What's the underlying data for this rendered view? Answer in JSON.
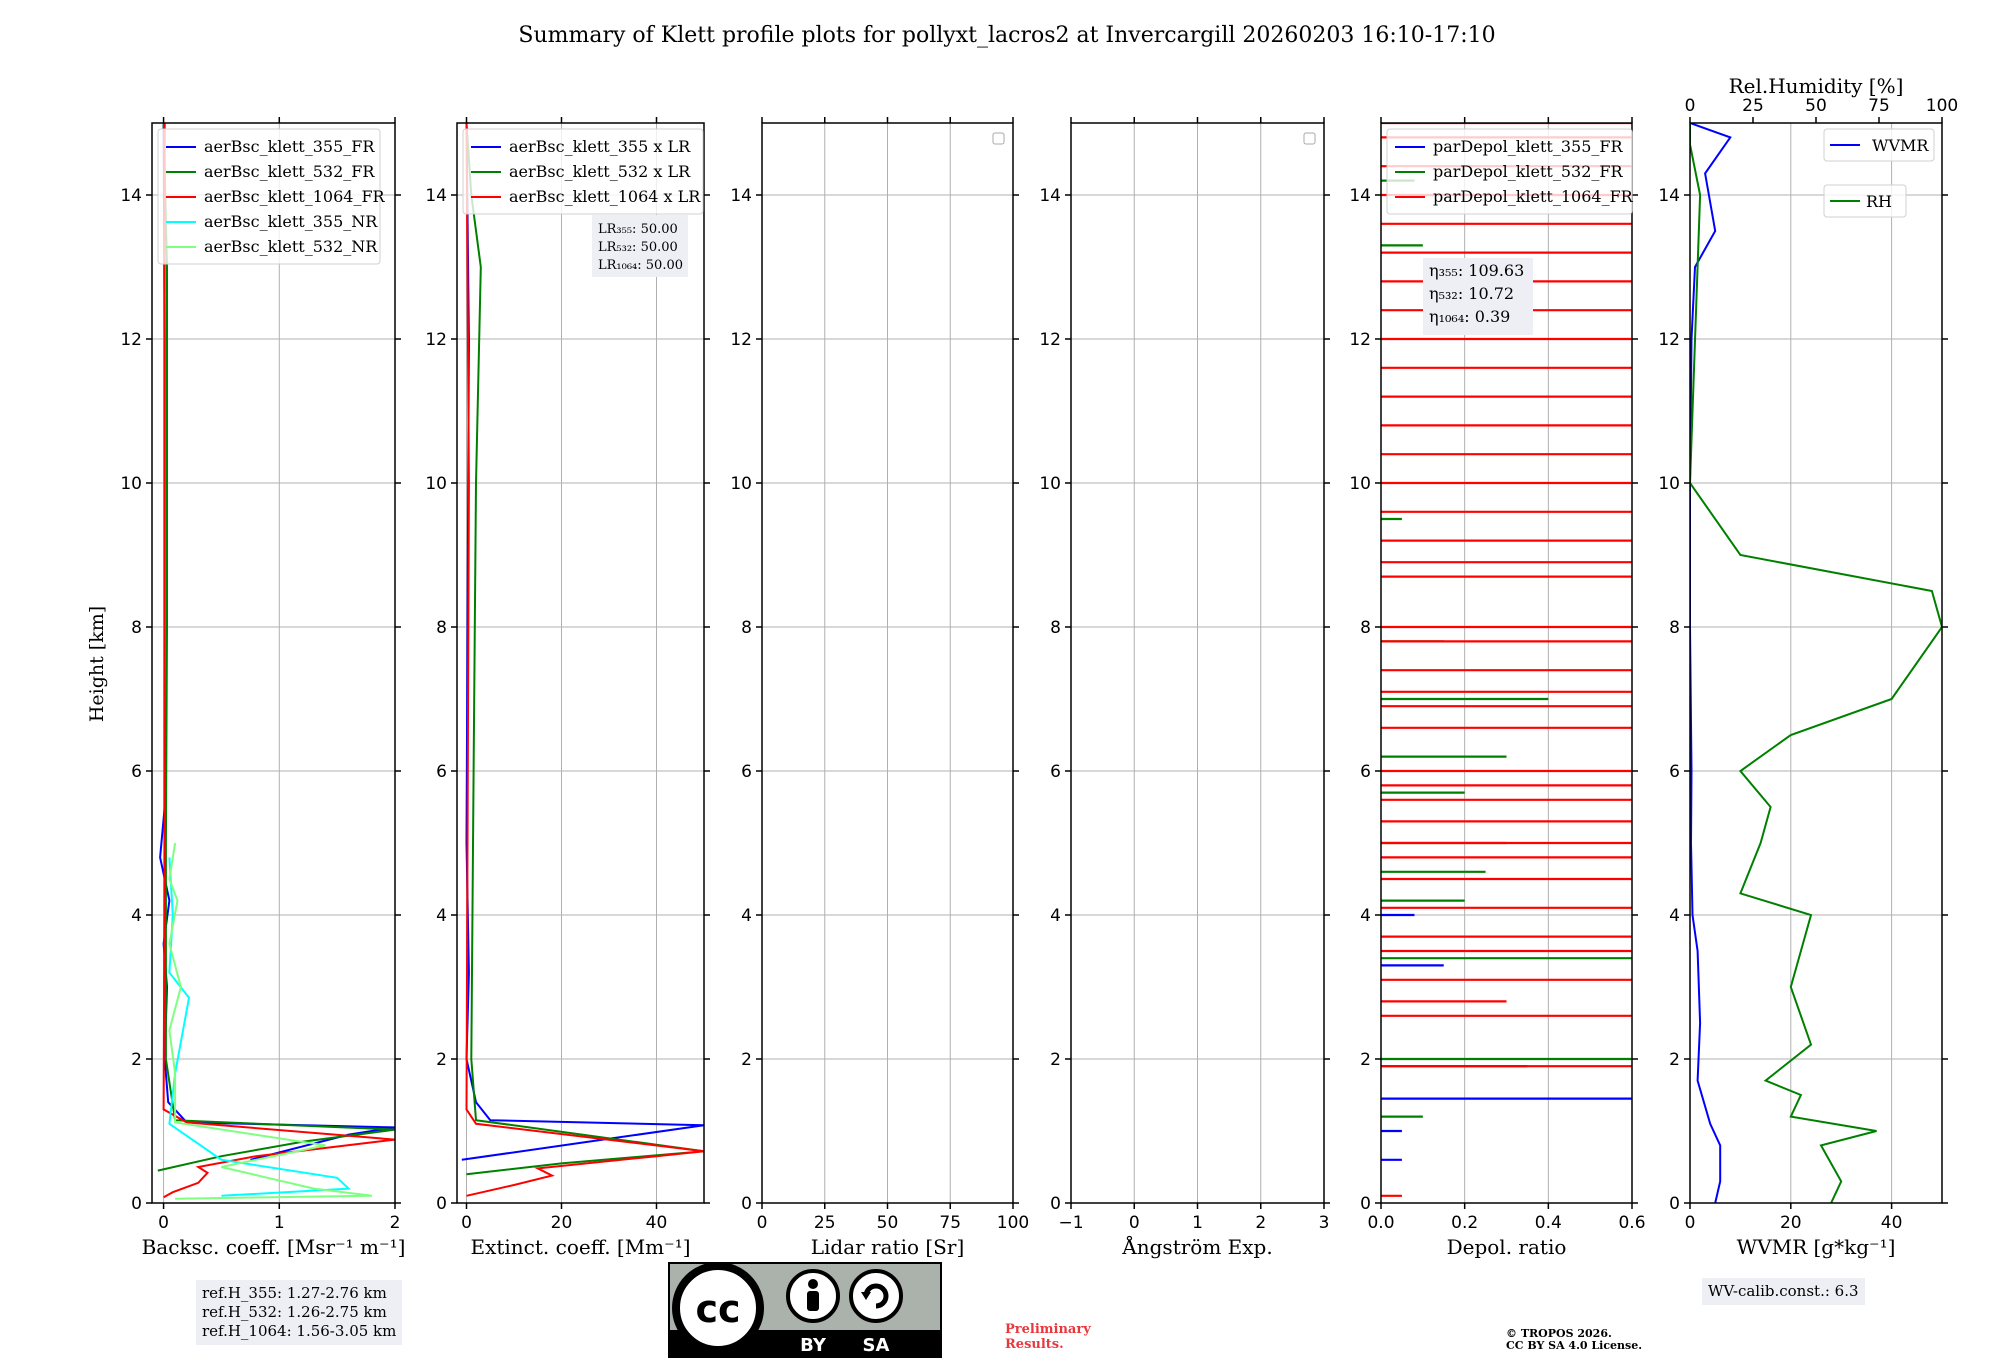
{
  "title": "Summary of Klett profile plots for pollyxt_lacros2 at Invercargill 20260203 16:10-17:10",
  "ylabel": "Height [km]",
  "colors": {
    "blue": "#0000ff",
    "green": "#008000",
    "red": "#ff0000",
    "cyan": "#00ffff",
    "lightgreen": "#7fff7f",
    "grid": "#b0b0b0"
  },
  "chart_data": [
    {
      "type": "line",
      "name": "backscatter",
      "xlabel": "Backsc. coeff. [Msr⁻¹ m⁻¹]",
      "xlim": [
        -0.1,
        2
      ],
      "ylim": [
        0,
        15
      ],
      "xticks": [
        0,
        1,
        2
      ],
      "xtick_labels": [
        "0",
        "1",
        "2"
      ],
      "yticks": [
        0,
        2,
        4,
        6,
        8,
        10,
        12,
        14
      ],
      "ytick_labels": [
        "0",
        "2",
        "4",
        "6",
        "8",
        "10",
        "12",
        "14"
      ],
      "legend": [
        "aerBsc_klett_355_FR",
        "aerBsc_klett_532_FR",
        "aerBsc_klett_1064_FR",
        "aerBsc_klett_355_NR",
        "aerBsc_klett_532_NR"
      ],
      "series": [
        {
          "name": "aerBsc_klett_355_FR",
          "color": "blue",
          "points": [
            [
              0.75,
              0.6
            ],
            [
              1.6,
              0.95
            ],
            [
              2.0,
              1.05
            ],
            [
              0.2,
              1.12
            ],
            [
              0.04,
              1.4
            ],
            [
              0.01,
              2.0
            ],
            [
              0.03,
              3.0
            ],
            [
              0.0,
              3.6
            ],
            [
              0.05,
              4.2
            ],
            [
              -0.03,
              4.8
            ],
            [
              0.01,
              5.5
            ],
            [
              0.01,
              8
            ],
            [
              0.01,
              12
            ],
            [
              0.0,
              15
            ]
          ]
        },
        {
          "name": "aerBsc_klett_532_FR",
          "color": "green",
          "points": [
            [
              -0.05,
              0.45
            ],
            [
              0.5,
              0.65
            ],
            [
              1.2,
              0.85
            ],
            [
              2.0,
              1.02
            ],
            [
              0.1,
              1.15
            ],
            [
              0.02,
              2
            ],
            [
              0.02,
              5
            ],
            [
              0.03,
              8
            ],
            [
              0.03,
              12
            ],
            [
              0.03,
              13
            ],
            [
              0.0,
              15
            ]
          ]
        },
        {
          "name": "aerBsc_klett_1064_FR",
          "color": "red",
          "points": [
            [
              0.0,
              0.08
            ],
            [
              0.08,
              0.15
            ],
            [
              0.3,
              0.28
            ],
            [
              0.38,
              0.42
            ],
            [
              0.3,
              0.5
            ],
            [
              0.8,
              0.65
            ],
            [
              2.0,
              0.88
            ],
            [
              0.2,
              1.12
            ],
            [
              0.0,
              1.3
            ],
            [
              0.01,
              5
            ],
            [
              0.01,
              10
            ],
            [
              0.01,
              15
            ]
          ]
        },
        {
          "name": "aerBsc_klett_355_NR",
          "color": "cyan",
          "points": [
            [
              0.5,
              0.1
            ],
            [
              1.6,
              0.2
            ],
            [
              1.5,
              0.35
            ],
            [
              0.5,
              0.6
            ],
            [
              0.05,
              1.1
            ],
            [
              0.1,
              1.8
            ],
            [
              0.22,
              2.85
            ],
            [
              0.05,
              3.2
            ],
            [
              0.08,
              4.0
            ],
            [
              0.05,
              4.8
            ]
          ]
        },
        {
          "name": "aerBsc_klett_532_NR",
          "color": "lightgreen",
          "points": [
            [
              0.1,
              0.06
            ],
            [
              1.8,
              0.1
            ],
            [
              1.3,
              0.2
            ],
            [
              0.5,
              0.5
            ],
            [
              1.4,
              0.8
            ],
            [
              0.1,
              1.12
            ],
            [
              0.1,
              1.8
            ],
            [
              0.05,
              2.4
            ],
            [
              0.15,
              3.0
            ],
            [
              0.05,
              3.6
            ],
            [
              0.12,
              4.2
            ],
            [
              0.05,
              4.5
            ],
            [
              0.1,
              5.0
            ]
          ]
        }
      ]
    },
    {
      "type": "line",
      "name": "extinction",
      "xlabel": "Extinct. coeff. [Mm⁻¹]",
      "xlim": [
        -2,
        50
      ],
      "ylim": [
        0,
        15
      ],
      "xticks": [
        0,
        20,
        40
      ],
      "xtick_labels": [
        "0",
        "20",
        "40"
      ],
      "yticks": [
        0,
        2,
        4,
        6,
        8,
        10,
        12,
        14
      ],
      "ytick_labels": [
        "0",
        "2",
        "4",
        "6",
        "8",
        "10",
        "12",
        "14"
      ],
      "legend": [
        "aerBsc_klett_355 x LR",
        "aerBsc_klett_532 x LR",
        "aerBsc_klett_1064 x LR"
      ],
      "annotation": [
        "LR₃₅₅: 50.00",
        "LR₅₃₂: 50.00",
        "LR₁₀₆₄: 50.00"
      ],
      "series": [
        {
          "name": "aerBsc_klett_355 x LR",
          "color": "blue",
          "points": [
            [
              -1,
              0.6
            ],
            [
              50,
              1.08
            ],
            [
              5,
              1.15
            ],
            [
              2,
              1.4
            ],
            [
              0,
              2.0
            ],
            [
              0.5,
              3.2
            ],
            [
              0,
              5
            ],
            [
              0.5,
              12
            ],
            [
              0,
              15
            ]
          ]
        },
        {
          "name": "aerBsc_klett_532 x LR",
          "color": "green",
          "points": [
            [
              0,
              0.4
            ],
            [
              20,
              0.55
            ],
            [
              50,
              0.72
            ],
            [
              2,
              1.15
            ],
            [
              1,
              2
            ],
            [
              1.5,
              6
            ],
            [
              2,
              10
            ],
            [
              3,
              13
            ],
            [
              1,
              14
            ],
            [
              0,
              15
            ]
          ]
        },
        {
          "name": "aerBsc_klett_1064 x LR",
          "color": "red",
          "points": [
            [
              0,
              0.1
            ],
            [
              10,
              0.25
            ],
            [
              18,
              0.38
            ],
            [
              15,
              0.48
            ],
            [
              40,
              0.65
            ],
            [
              50,
              0.72
            ],
            [
              2,
              1.1
            ],
            [
              0,
              1.3
            ],
            [
              0.5,
              10
            ],
            [
              0,
              15
            ]
          ]
        }
      ]
    },
    {
      "type": "line",
      "name": "lidar_ratio",
      "xlabel": "Lidar ratio [Sr]",
      "xlim": [
        0,
        100
      ],
      "ylim": [
        0,
        15
      ],
      "xticks": [
        0,
        25,
        50,
        75,
        100
      ],
      "xtick_labels": [
        "0",
        "25",
        "50",
        "75",
        "100"
      ],
      "yticks": [
        0,
        2,
        4,
        6,
        8,
        10,
        12,
        14
      ],
      "ytick_labels": [
        "0",
        "2",
        "4",
        "6",
        "8",
        "10",
        "12",
        "14"
      ],
      "series": []
    },
    {
      "type": "line",
      "name": "angstrom",
      "xlabel": "Ångström Exp.",
      "xlim": [
        -1,
        3
      ],
      "ylim": [
        0,
        15
      ],
      "xticks": [
        -1,
        0,
        1,
        2,
        3
      ],
      "xtick_labels": [
        "−1",
        "0",
        "1",
        "2",
        "3"
      ],
      "yticks": [
        0,
        2,
        4,
        6,
        8,
        10,
        12,
        14
      ],
      "ytick_labels": [
        "0",
        "2",
        "4",
        "6",
        "8",
        "10",
        "12",
        "14"
      ],
      "series": []
    },
    {
      "type": "line",
      "name": "depol",
      "xlabel": "Depol. ratio",
      "xlim": [
        0,
        0.6
      ],
      "ylim": [
        0,
        15
      ],
      "xticks": [
        0,
        0.2,
        0.4,
        0.6
      ],
      "xtick_labels": [
        "0.0",
        "0.2",
        "0.4",
        "0.6"
      ],
      "yticks": [
        0,
        2,
        4,
        6,
        8,
        10,
        12,
        14
      ],
      "ytick_labels": [
        "0",
        "2",
        "4",
        "6",
        "8",
        "10",
        "12",
        "14"
      ],
      "legend": [
        "parDepol_klett_355_FR",
        "parDepol_klett_532_FR",
        "parDepol_klett_1064_FR"
      ],
      "annotation": [
        "η₃₅₅: 109.63",
        "η₅₃₂: 10.72",
        "η₁₀₆₄: 0.39"
      ],
      "series": [
        {
          "name": "parDepol_klett_355_FR",
          "color": "blue",
          "spikes": [
            [
              0.05,
              0.6
            ],
            [
              0.05,
              1.0
            ],
            [
              0.6,
              1.45
            ],
            [
              0.35,
              1.9
            ],
            [
              0.15,
              3.3
            ],
            [
              0.08,
              4.0
            ]
          ]
        },
        {
          "name": "parDepol_klett_532_FR",
          "color": "green",
          "spikes": [
            [
              0.1,
              1.2
            ],
            [
              0.6,
              2.0
            ],
            [
              0.6,
              3.4
            ],
            [
              0.2,
              4.2
            ],
            [
              0.25,
              4.6
            ],
            [
              0.3,
              5.0
            ],
            [
              0.2,
              5.7
            ],
            [
              0.3,
              6.2
            ],
            [
              0.4,
              7.0
            ],
            [
              0.15,
              7.8
            ],
            [
              0.05,
              9.5
            ],
            [
              0.1,
              13.3
            ],
            [
              0.08,
              14.2
            ]
          ]
        },
        {
          "name": "parDepol_klett_1064_FR",
          "color": "red",
          "spikes": [
            [
              0.05,
              0.1
            ],
            [
              0.6,
              1.9
            ],
            [
              0.6,
              2.6
            ],
            [
              0.3,
              2.8
            ],
            [
              0.6,
              3.1
            ],
            [
              0.6,
              3.5
            ],
            [
              0.6,
              3.7
            ],
            [
              0.6,
              4.1
            ],
            [
              0.6,
              4.5
            ],
            [
              0.6,
              4.8
            ],
            [
              0.6,
              5.0
            ],
            [
              0.6,
              5.3
            ],
            [
              0.6,
              5.6
            ],
            [
              0.6,
              5.8
            ],
            [
              0.6,
              6.0
            ],
            [
              0.6,
              6.6
            ],
            [
              0.6,
              6.9
            ],
            [
              0.6,
              7.1
            ],
            [
              0.6,
              7.4
            ],
            [
              0.6,
              7.8
            ],
            [
              0.6,
              8.0
            ],
            [
              0.6,
              8.7
            ],
            [
              0.6,
              8.9
            ],
            [
              0.6,
              9.2
            ],
            [
              0.6,
              9.6
            ],
            [
              0.6,
              10.0
            ],
            [
              0.6,
              10.4
            ],
            [
              0.6,
              10.8
            ],
            [
              0.6,
              11.2
            ],
            [
              0.6,
              11.6
            ],
            [
              0.6,
              12.0
            ],
            [
              0.6,
              12.4
            ],
            [
              0.6,
              12.8
            ],
            [
              0.6,
              13.2
            ],
            [
              0.6,
              13.6
            ],
            [
              0.6,
              14.0
            ],
            [
              0.6,
              14.4
            ],
            [
              0.6,
              14.8
            ],
            [
              0.6,
              15.0
            ]
          ]
        }
      ]
    },
    {
      "type": "line",
      "name": "wvmr",
      "xlabel": "WVMR [g*kg⁻¹]",
      "top_xlabel": "Rel.Humidity [%]",
      "xlim": [
        0,
        50
      ],
      "ylim": [
        0,
        15
      ],
      "xticks": [
        0,
        20,
        40
      ],
      "xtick_labels": [
        "0",
        "20",
        "40"
      ],
      "top_xlim": [
        0,
        100
      ],
      "top_xticks": [
        0,
        25,
        50,
        75,
        100
      ],
      "top_xtick_labels": [
        "0",
        "25",
        "50",
        "75",
        "100"
      ],
      "yticks": [
        0,
        2,
        4,
        6,
        8,
        10,
        12,
        14
      ],
      "ytick_labels": [
        "0",
        "2",
        "4",
        "6",
        "8",
        "10",
        "12",
        "14"
      ],
      "legend": [
        "WVMR",
        "RH"
      ],
      "series": [
        {
          "name": "WVMR",
          "color": "blue",
          "points": [
            [
              5,
              0
            ],
            [
              6,
              0.3
            ],
            [
              6,
              0.8
            ],
            [
              4,
              1.1
            ],
            [
              1.5,
              1.7
            ],
            [
              2,
              2.5
            ],
            [
              1.5,
              3.5
            ],
            [
              0.5,
              4.0
            ],
            [
              0.2,
              5
            ],
            [
              0.3,
              6
            ],
            [
              0,
              8
            ],
            [
              0,
              10
            ],
            [
              0.3,
              12
            ],
            [
              1,
              13
            ],
            [
              5,
              13.5
            ],
            [
              3,
              14.3
            ],
            [
              8,
              14.8
            ],
            [
              0,
              15
            ]
          ]
        },
        {
          "name": "RH",
          "color": "green",
          "points": [
            [
              28,
              0
            ],
            [
              30,
              0.3
            ],
            [
              26,
              0.8
            ],
            [
              37,
              1.0
            ],
            [
              20,
              1.2
            ],
            [
              22,
              1.5
            ],
            [
              15,
              1.7
            ],
            [
              24,
              2.2
            ],
            [
              20,
              3.0
            ],
            [
              22,
              3.5
            ],
            [
              24,
              4.0
            ],
            [
              10,
              4.3
            ],
            [
              14,
              5.0
            ],
            [
              16,
              5.5
            ],
            [
              10,
              6.0
            ],
            [
              20,
              6.5
            ],
            [
              40,
              7.0
            ],
            [
              45,
              7.5
            ],
            [
              50,
              8.0
            ],
            [
              48,
              8.5
            ],
            [
              10,
              9
            ],
            [
              0,
              10
            ],
            [
              2,
              14.0
            ],
            [
              0,
              14.7
            ],
            [
              0,
              15
            ]
          ]
        }
      ]
    }
  ],
  "refH": [
    "ref.H_355: 1.27-2.76 km",
    "ref.H_532: 1.26-2.75 km",
    "ref.H_1064: 1.56-3.05 km"
  ],
  "wv_calib": "WV-calib.const.: 6.3",
  "license": {
    "by": "BY",
    "sa": "SA",
    "cc": "cc"
  },
  "prelim": [
    "Preliminary",
    "Results."
  ],
  "copyright": [
    "© TROPOS 2026.",
    "CC BY SA 4.0 License."
  ]
}
